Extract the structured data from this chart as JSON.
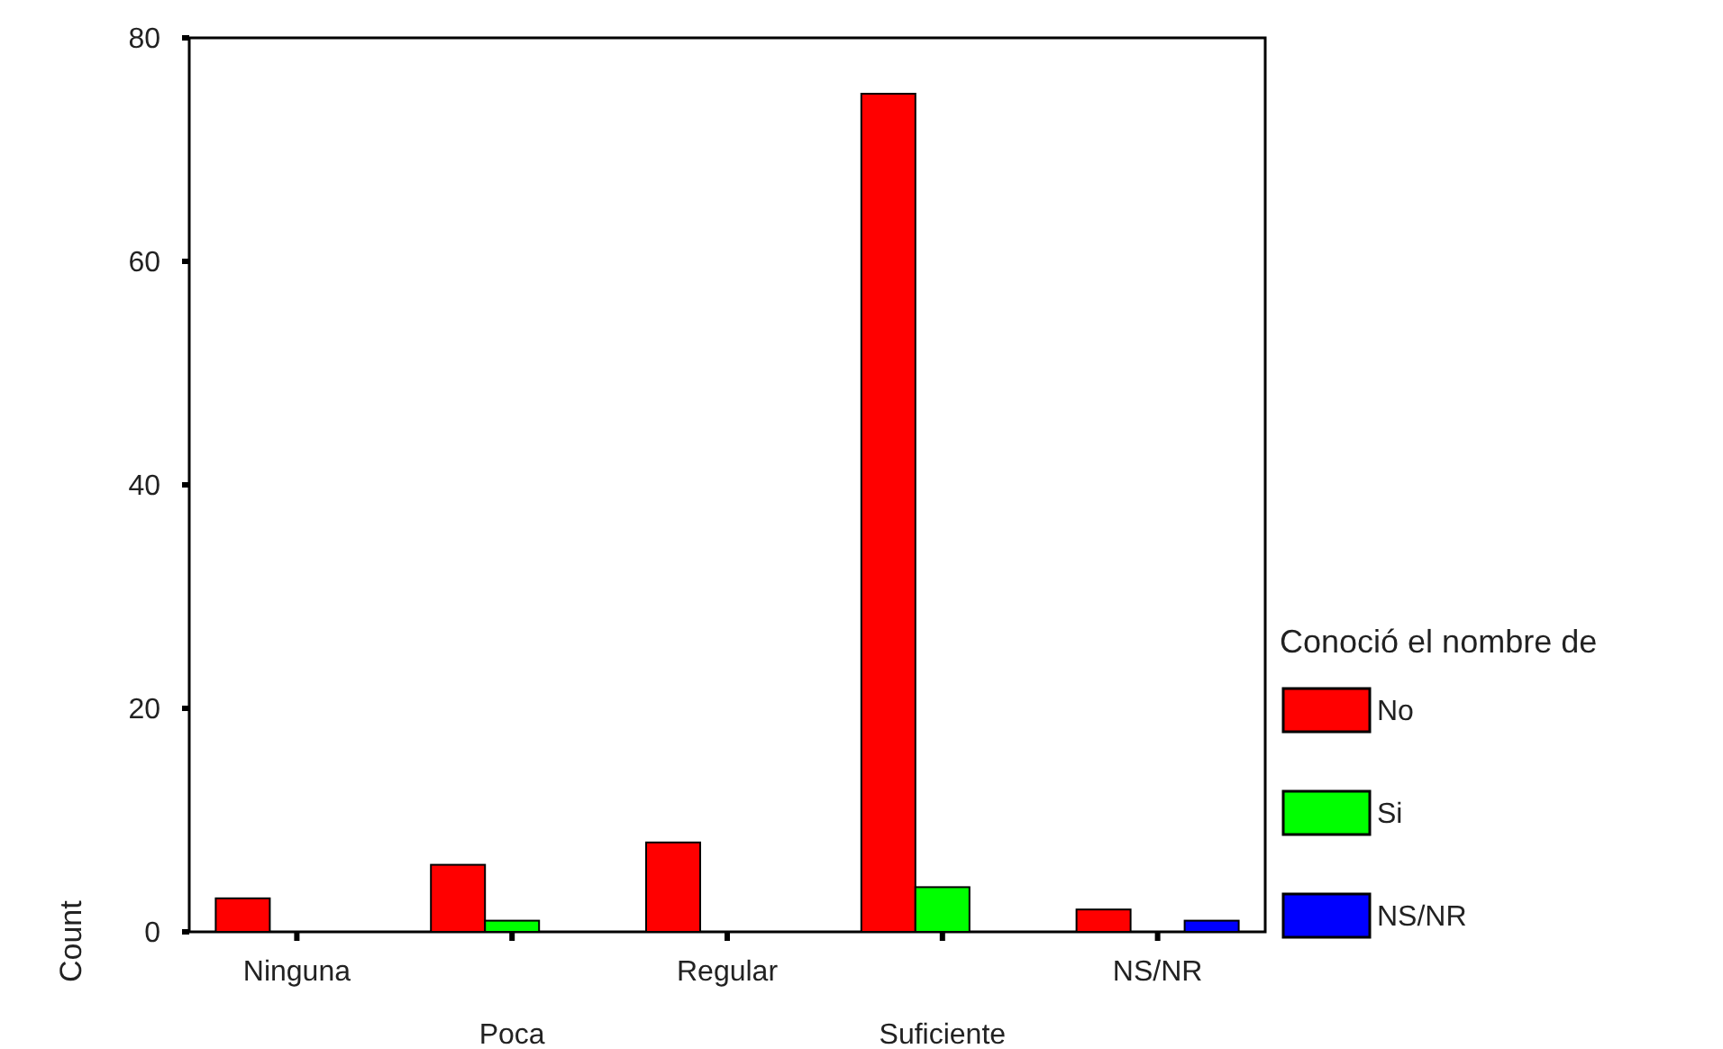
{
  "chart_data": {
    "type": "bar",
    "ylabel": "Count",
    "legend_title": "Conoció el nombre de",
    "legend": "right",
    "categories": [
      "Ninguna",
      "Poca",
      "Regular",
      "Suficiente",
      "NS/NR"
    ],
    "series": [
      {
        "name": "No",
        "color": "#ff0000",
        "values": [
          3,
          6,
          8,
          75,
          2
        ]
      },
      {
        "name": "Si",
        "color": "#00ff00",
        "values": [
          null,
          1,
          null,
          4,
          null
        ]
      },
      {
        "name": "NS/NR",
        "color": "#0000ff",
        "values": [
          null,
          null,
          null,
          null,
          1
        ]
      }
    ],
    "ylim": [
      0,
      80
    ],
    "yticks": [
      0,
      20,
      40,
      60,
      80
    ],
    "grid": false
  }
}
